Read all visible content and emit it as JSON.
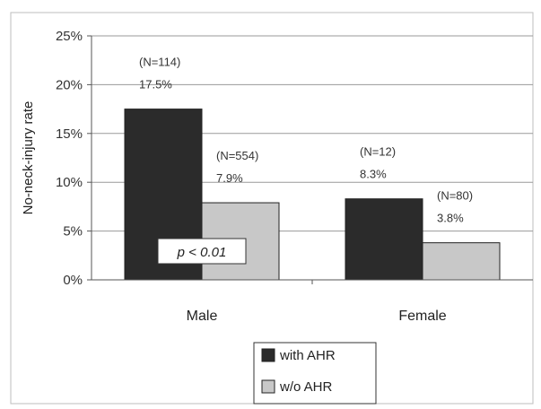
{
  "chart_data": {
    "type": "bar",
    "categories": [
      "Male",
      "Female"
    ],
    "series": [
      {
        "name": "with AHR",
        "values": [
          17.5,
          8.3
        ],
        "counts": [
          "(N=114)",
          "(N=12)"
        ],
        "labels": [
          "17.5%",
          "8.3%"
        ],
        "color": "#2b2b2b"
      },
      {
        "name": "w/o AHR",
        "values": [
          7.9,
          3.8
        ],
        "counts": [
          "(N=554)",
          "(N=80)"
        ],
        "labels": [
          "7.9%",
          "3.8%"
        ],
        "color": "#c8c8c8"
      }
    ],
    "ylabel": "No-neck-injury rate",
    "ylim": [
      0,
      25
    ],
    "yticks": [
      "0%",
      "5%",
      "10%",
      "15%",
      "20%",
      "25%"
    ],
    "annotation": "p < 0.01",
    "legend_position": "bottom"
  }
}
